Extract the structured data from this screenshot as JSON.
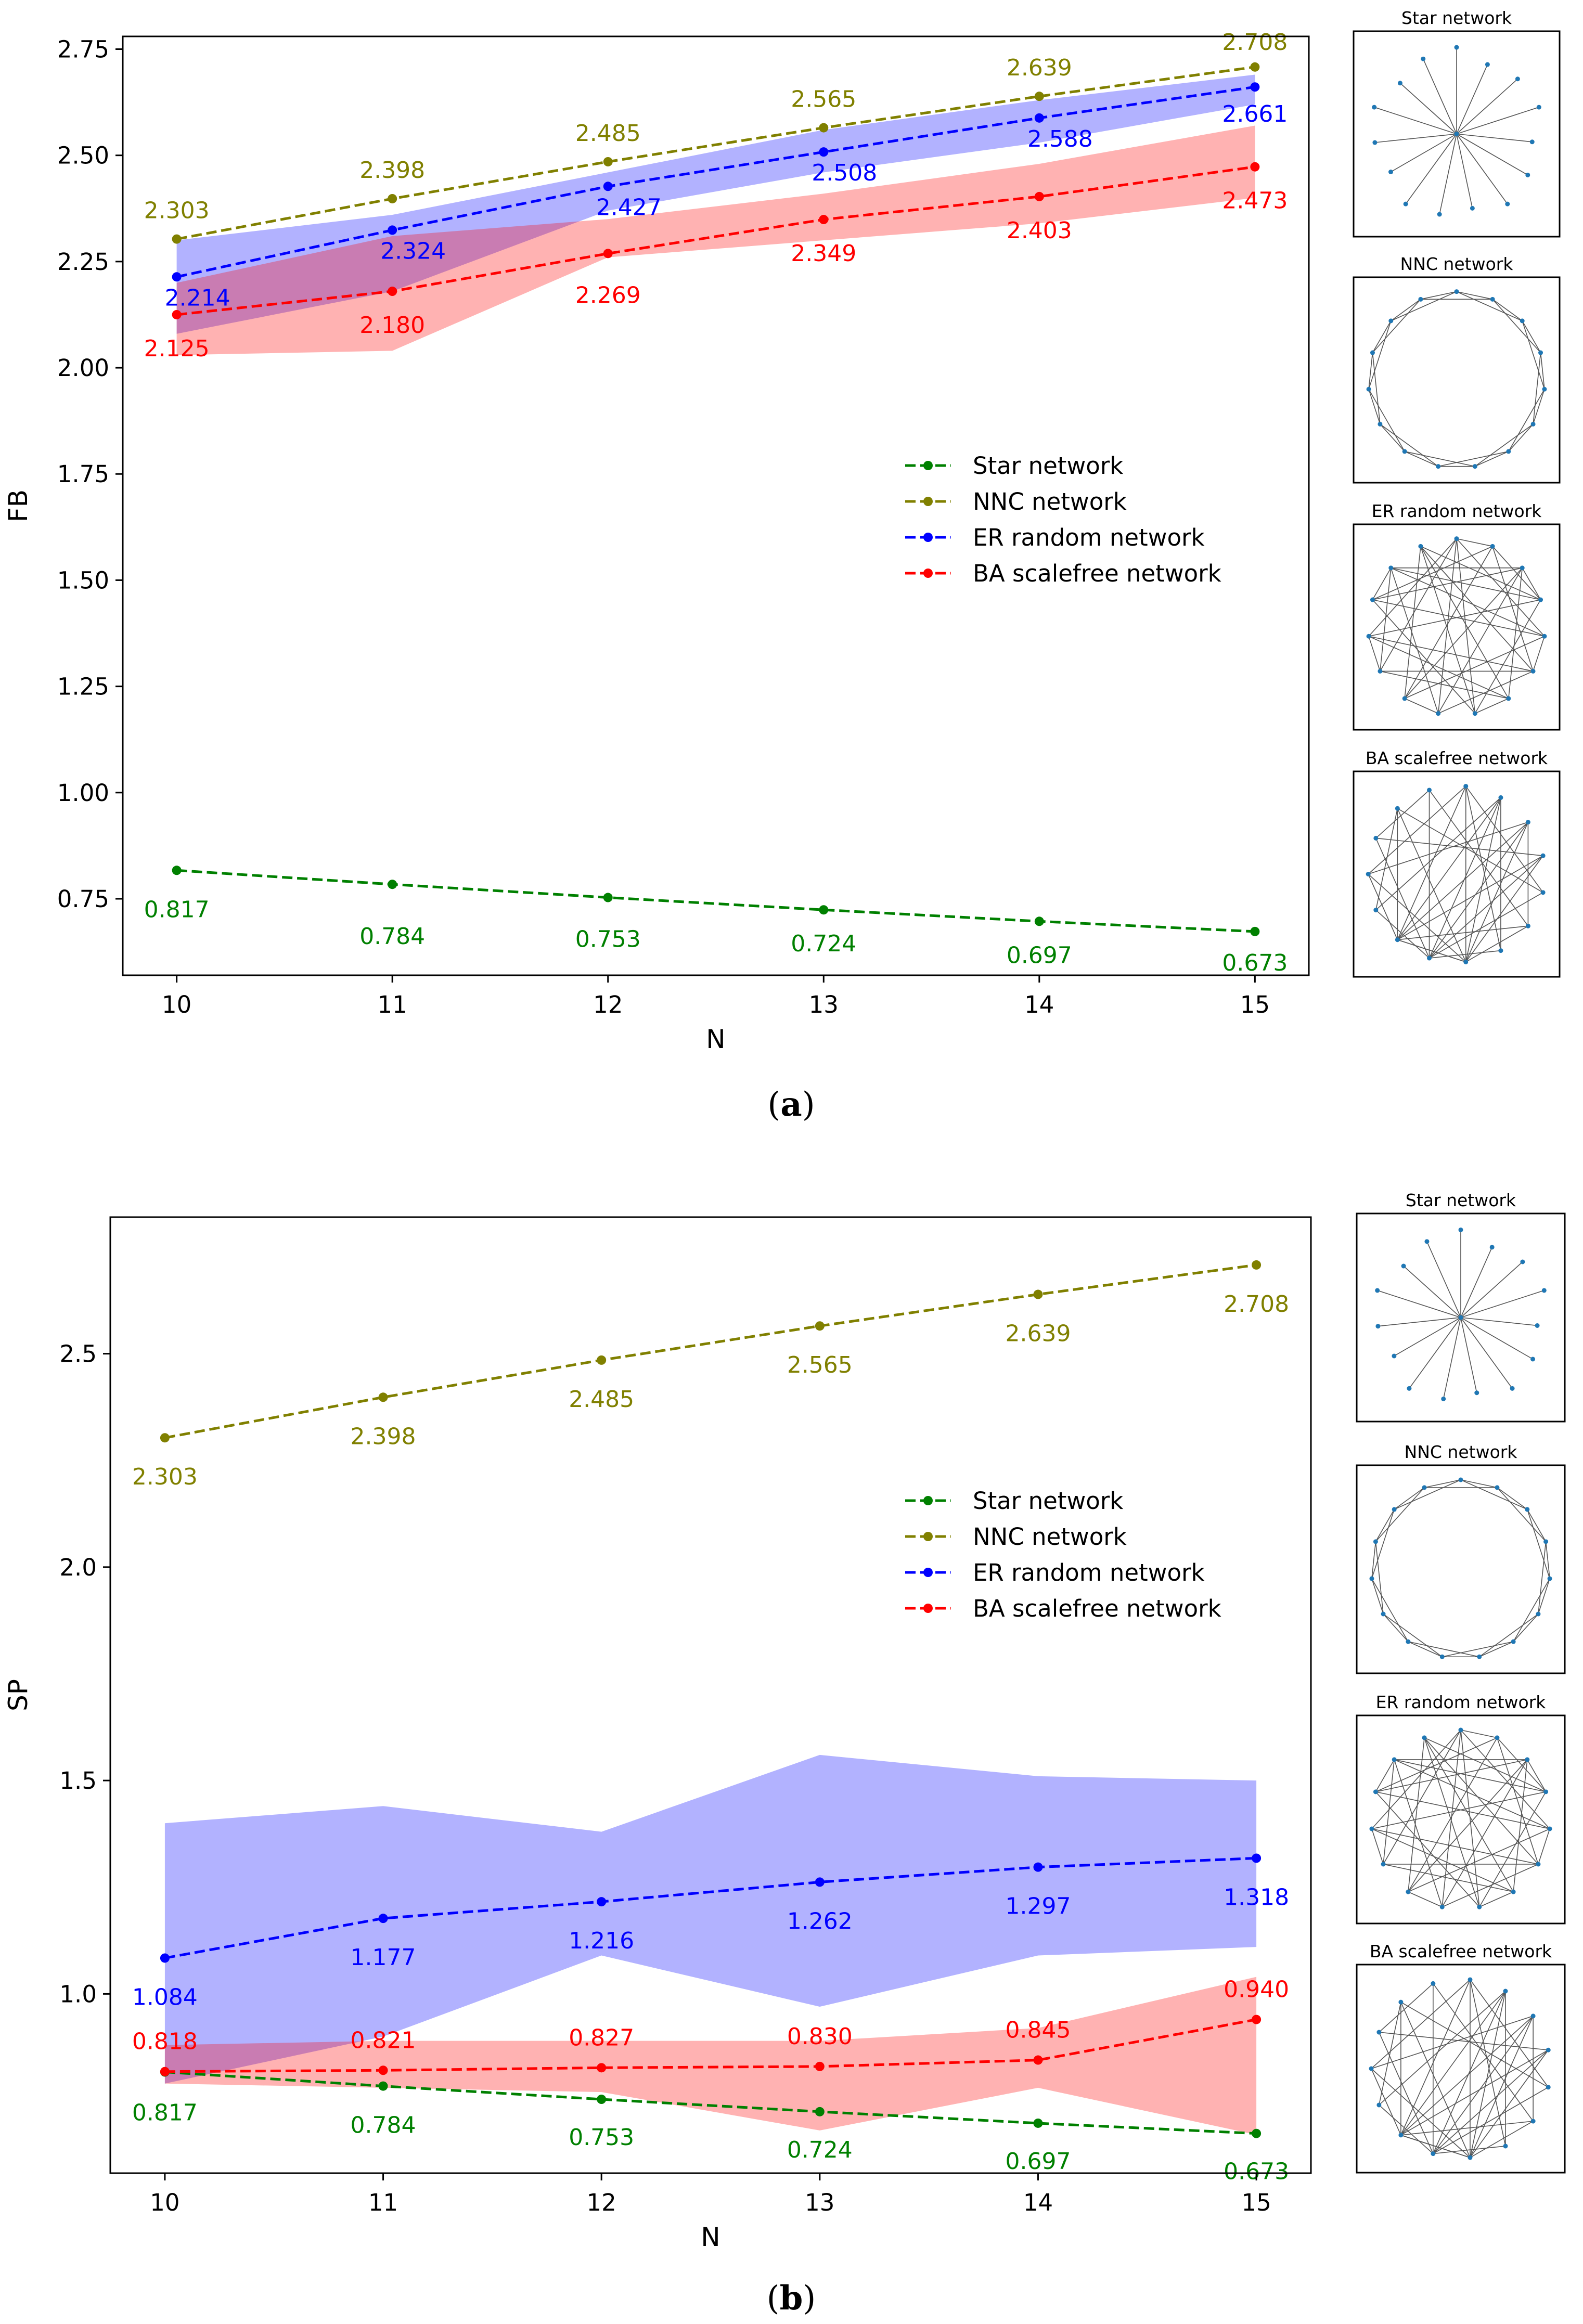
{
  "chart_data": [
    {
      "type": "line",
      "caption": {
        "open": "(",
        "letter": "a",
        "close": ")"
      },
      "xlabel": "N",
      "ylabel": "FB",
      "x": [
        10,
        11,
        12,
        13,
        14,
        15
      ],
      "xlim": [
        9.75,
        15.25
      ],
      "ylim": [
        0.57,
        2.78
      ],
      "yticks": [
        0.75,
        1.0,
        1.25,
        1.5,
        1.75,
        2.0,
        2.25,
        2.5,
        2.75
      ],
      "ytick_labels": [
        "0.75",
        "1.00",
        "1.25",
        "1.50",
        "1.75",
        "2.00",
        "2.25",
        "2.50",
        "2.75"
      ],
      "legend_position": "center-right",
      "series": [
        {
          "name": "Star network",
          "color": "#008000",
          "values": [
            0.817,
            0.784,
            0.753,
            0.724,
            0.697,
            0.673
          ],
          "labels": [
            "0.817",
            "0.784",
            "0.753",
            "0.724",
            "0.697",
            "0.673"
          ]
        },
        {
          "name": "NNC network",
          "color": "#808000",
          "values": [
            2.303,
            2.398,
            2.485,
            2.565,
            2.639,
            2.708
          ],
          "labels": [
            "2.303",
            "2.398",
            "2.485",
            "2.565",
            "2.639",
            "2.708"
          ]
        },
        {
          "name": "ER random network",
          "color": "#0000ff",
          "values": [
            2.214,
            2.324,
            2.427,
            2.508,
            2.588,
            2.661
          ],
          "labels": [
            "2.214",
            "2.324",
            "2.427",
            "2.508",
            "2.588",
            "2.661"
          ],
          "band": {
            "color": "#0000ff",
            "lower": [
              2.08,
              2.18,
              2.37,
              2.46,
              2.53,
              2.62
            ],
            "upper": [
              2.3,
              2.36,
              2.46,
              2.56,
              2.63,
              2.69
            ]
          }
        },
        {
          "name": "BA scalefree network",
          "color": "#ff0000",
          "values": [
            2.125,
            2.18,
            2.269,
            2.349,
            2.403,
            2.473
          ],
          "labels": [
            "2.125",
            "2.180",
            "2.269",
            "2.349",
            "2.403",
            "2.473"
          ],
          "band": {
            "color": "#ff0000",
            "lower": [
              2.03,
              2.04,
              2.26,
              2.3,
              2.34,
              2.4
            ],
            "upper": [
              2.2,
              2.31,
              2.35,
              2.41,
              2.48,
              2.57
            ]
          }
        }
      ],
      "network_panels": [
        "Star network",
        "NNC network",
        "ER random network",
        "BA scalefree network"
      ]
    },
    {
      "type": "line",
      "caption": {
        "open": "(",
        "letter": "b",
        "close": ")"
      },
      "xlabel": "N",
      "ylabel": "SP",
      "x": [
        10,
        11,
        12,
        13,
        14,
        15
      ],
      "xlim": [
        9.75,
        15.25
      ],
      "ylim": [
        0.58,
        2.82
      ],
      "yticks": [
        1.0,
        1.5,
        2.0,
        2.5
      ],
      "ytick_labels": [
        "1.0",
        "1.5",
        "2.0",
        "2.5"
      ],
      "legend_position": "center-right",
      "series": [
        {
          "name": "Star network",
          "color": "#008000",
          "values": [
            0.817,
            0.784,
            0.753,
            0.724,
            0.697,
            0.673
          ],
          "labels": [
            "0.817",
            "0.784",
            "0.753",
            "0.724",
            "0.697",
            "0.673"
          ]
        },
        {
          "name": "NNC network",
          "color": "#808000",
          "values": [
            2.303,
            2.398,
            2.485,
            2.565,
            2.639,
            2.708
          ],
          "labels": [
            "2.303",
            "2.398",
            "2.485",
            "2.565",
            "2.639",
            "2.708"
          ]
        },
        {
          "name": "ER random network",
          "color": "#0000ff",
          "values": [
            1.084,
            1.177,
            1.216,
            1.262,
            1.297,
            1.318
          ],
          "labels": [
            "1.084",
            "1.177",
            "1.216",
            "1.262",
            "1.297",
            "1.318"
          ],
          "band": {
            "color": "#0000ff",
            "lower": [
              0.79,
              0.9,
              1.09,
              0.97,
              1.09,
              1.11
            ],
            "upper": [
              1.4,
              1.44,
              1.38,
              1.56,
              1.51,
              1.5
            ]
          }
        },
        {
          "name": "BA scalefree network",
          "color": "#ff0000",
          "values": [
            0.818,
            0.821,
            0.827,
            0.83,
            0.845,
            0.94
          ],
          "labels": [
            "0.818",
            "0.821",
            "0.827",
            "0.830",
            "0.845",
            "0.940"
          ],
          "band": {
            "color": "#ff0000",
            "lower": [
              0.79,
              0.78,
              0.77,
              0.68,
              0.78,
              0.67
            ],
            "upper": [
              0.88,
              0.89,
              0.89,
              0.89,
              0.92,
              1.04
            ]
          }
        }
      ],
      "network_panels": [
        "Star network",
        "NNC network",
        "ER random network",
        "BA scalefree network"
      ]
    }
  ]
}
